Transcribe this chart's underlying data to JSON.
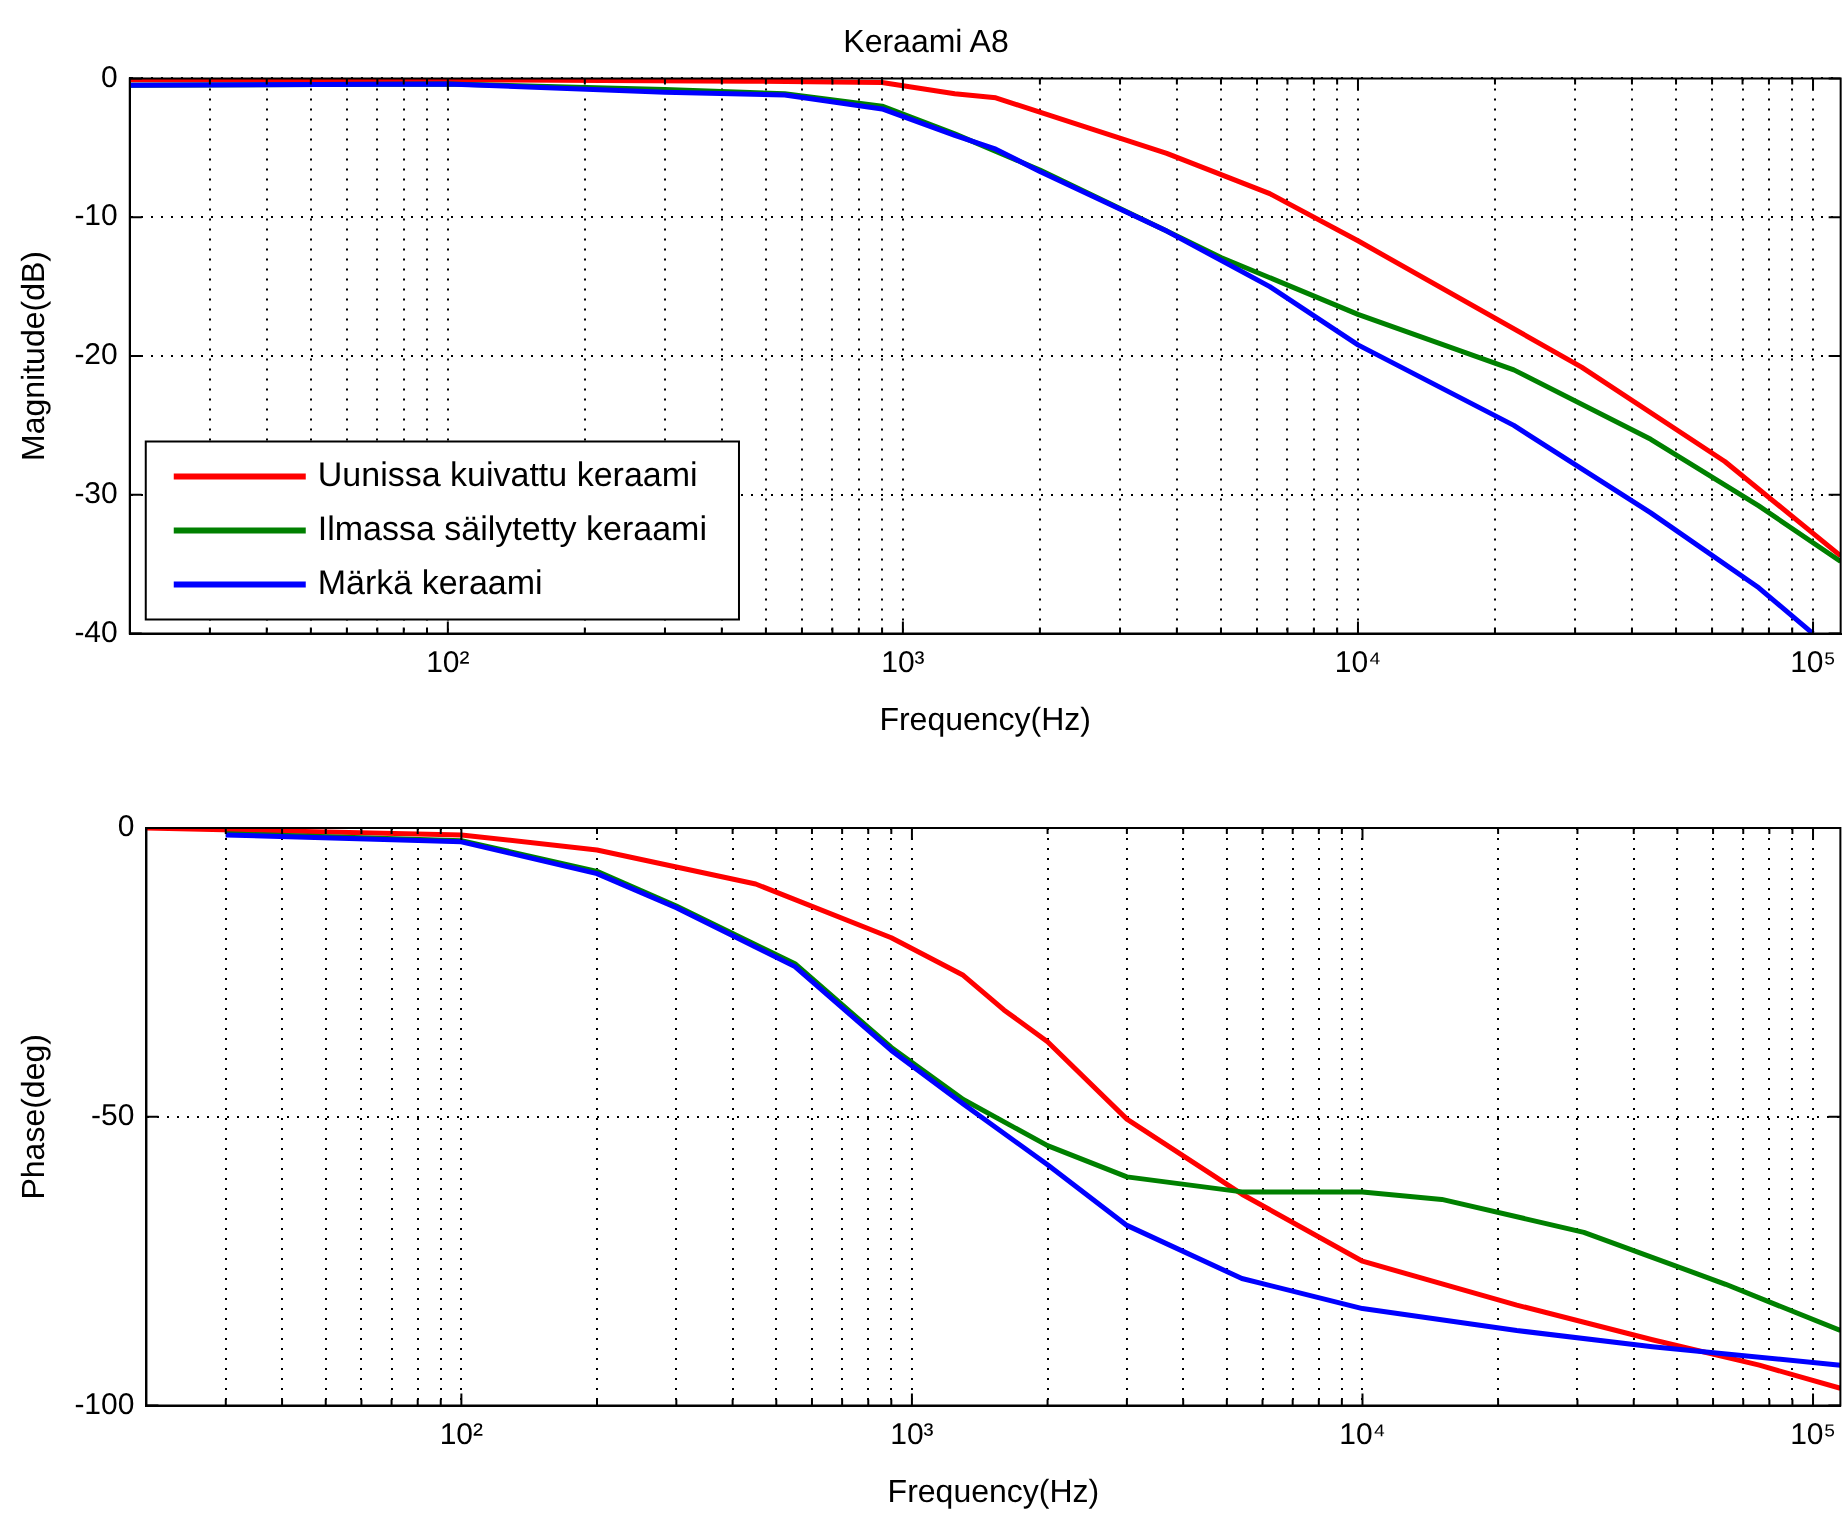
{
  "chart_data": [
    {
      "type": "line",
      "title": "Keraami A8",
      "xlabel": "Frequency(Hz)",
      "ylabel": "Magnitude(dB)",
      "log": "x",
      "grid": true,
      "legend": "bottom left",
      "xlim": [
        20,
        115000
      ],
      "ylim": [
        -40,
        0
      ],
      "xticks": [
        {
          "value": 30,
          "label": null
        },
        {
          "value": 40,
          "label": null
        },
        {
          "value": 50,
          "label": null
        },
        {
          "value": 60,
          "label": null
        },
        {
          "value": 70,
          "label": null
        },
        {
          "value": 80,
          "label": null
        },
        {
          "value": 90,
          "label": null
        },
        {
          "value": 100,
          "label": "10²"
        },
        {
          "value": 200,
          "label": null
        },
        {
          "value": 300,
          "label": null
        },
        {
          "value": 400,
          "label": null
        },
        {
          "value": 500,
          "label": null
        },
        {
          "value": 600,
          "label": null
        },
        {
          "value": 700,
          "label": null
        },
        {
          "value": 800,
          "label": null
        },
        {
          "value": 900,
          "label": null
        },
        {
          "value": 1000,
          "label": "10³"
        },
        {
          "value": 2000,
          "label": null
        },
        {
          "value": 3000,
          "label": null
        },
        {
          "value": 4000,
          "label": null
        },
        {
          "value": 5000,
          "label": null
        },
        {
          "value": 6000,
          "label": null
        },
        {
          "value": 7000,
          "label": null
        },
        {
          "value": 8000,
          "label": null
        },
        {
          "value": 9000,
          "label": null
        },
        {
          "value": 10000,
          "label": "10⁴"
        },
        {
          "value": 20000,
          "label": null
        },
        {
          "value": 30000,
          "label": null
        },
        {
          "value": 40000,
          "label": null
        },
        {
          "value": 50000,
          "label": null
        },
        {
          "value": 60000,
          "label": null
        },
        {
          "value": 70000,
          "label": null
        },
        {
          "value": 80000,
          "label": null
        },
        {
          "value": 90000,
          "label": null
        },
        {
          "value": 100000,
          "label": "10⁵"
        }
      ],
      "yticks": [
        -40,
        -30,
        -20,
        -10,
        0
      ],
      "series": [
        {
          "name": "Uunissa kuivattu keraami",
          "color": "#ff0000",
          "x": [
            20,
            100,
            450,
            900,
            1300,
            1600,
            3800,
            6400,
            10000,
            31000,
            64000,
            115000
          ],
          "values": [
            -0.1,
            -0.1,
            -0.2,
            -0.3,
            -1.1,
            -1.4,
            -5.4,
            -8.3,
            -11.7,
            -20.8,
            -27.6,
            -34.4
          ]
        },
        {
          "name": "Ilmassa säilytetty keraami",
          "color": "#008000",
          "x": [
            20,
            100,
            300,
            550,
            900,
            1300,
            2000,
            3800,
            5000,
            10000,
            22000,
            44000,
            76000,
            115000
          ],
          "values": [
            -0.5,
            -0.4,
            -0.8,
            -1.1,
            -2.0,
            -4.0,
            -6.6,
            -11,
            -12.9,
            -17,
            -21,
            -26,
            -30.8,
            -34.8
          ]
        },
        {
          "name": "Märkä keraami",
          "color": "#0000ff",
          "x": [
            20,
            100,
            300,
            550,
            900,
            1300,
            1600,
            2000,
            3800,
            6400,
            10000,
            22000,
            44000,
            76000,
            100000
          ],
          "values": [
            -0.5,
            -0.4,
            -1,
            -1.2,
            -2.2,
            -4.1,
            -5.1,
            -6.7,
            -11,
            -15,
            -19.2,
            -25,
            -31.3,
            -36.7,
            -40
          ]
        }
      ]
    },
    {
      "type": "line",
      "xlabel": "Frequency(Hz)",
      "ylabel": "Phase(deg)",
      "log": "x",
      "grid": true,
      "xlim": [
        20,
        115000
      ],
      "ylim": [
        -100,
        0
      ],
      "xticks": [
        {
          "value": 30,
          "label": null
        },
        {
          "value": 40,
          "label": null
        },
        {
          "value": 50,
          "label": null
        },
        {
          "value": 60,
          "label": null
        },
        {
          "value": 70,
          "label": null
        },
        {
          "value": 80,
          "label": null
        },
        {
          "value": 90,
          "label": null
        },
        {
          "value": 100,
          "label": "10²"
        },
        {
          "value": 200,
          "label": null
        },
        {
          "value": 300,
          "label": null
        },
        {
          "value": 400,
          "label": null
        },
        {
          "value": 500,
          "label": null
        },
        {
          "value": 600,
          "label": null
        },
        {
          "value": 700,
          "label": null
        },
        {
          "value": 800,
          "label": null
        },
        {
          "value": 900,
          "label": null
        },
        {
          "value": 1000,
          "label": "10³"
        },
        {
          "value": 2000,
          "label": null
        },
        {
          "value": 3000,
          "label": null
        },
        {
          "value": 4000,
          "label": null
        },
        {
          "value": 5000,
          "label": null
        },
        {
          "value": 6000,
          "label": null
        },
        {
          "value": 7000,
          "label": null
        },
        {
          "value": 8000,
          "label": null
        },
        {
          "value": 9000,
          "label": null
        },
        {
          "value": 10000,
          "label": "10⁴"
        },
        {
          "value": 20000,
          "label": null
        },
        {
          "value": 30000,
          "label": null
        },
        {
          "value": 40000,
          "label": null
        },
        {
          "value": 50000,
          "label": null
        },
        {
          "value": 60000,
          "label": null
        },
        {
          "value": 70000,
          "label": null
        },
        {
          "value": 80000,
          "label": null
        },
        {
          "value": 90000,
          "label": null
        },
        {
          "value": 100000,
          "label": "10⁵"
        }
      ],
      "yticks": [
        -100,
        -50,
        0
      ],
      "series": [
        {
          "color": "#ff0000",
          "x": [
            20,
            100,
            200,
            450,
            900,
            1300,
            1600,
            2000,
            3000,
            5400,
            10000,
            22000,
            44000,
            76000,
            115000
          ],
          "values": [
            0,
            -1.2,
            -3.8,
            -9.7,
            -19,
            -25.5,
            -31.5,
            -37,
            -50.4,
            -63.4,
            -75,
            -82.6,
            -88.6,
            -93,
            -97
          ]
        },
        {
          "color": "#008000",
          "x": [
            30,
            100,
            200,
            300,
            550,
            900,
            1300,
            2000,
            3000,
            5400,
            10000,
            15000,
            31000,
            64000,
            115000
          ],
          "values": [
            -1,
            -2.2,
            -7.5,
            -13.5,
            -23.5,
            -38,
            -47,
            -55,
            -60.4,
            -63,
            -63,
            -64.3,
            -70,
            -79,
            -87
          ]
        },
        {
          "color": "#0000ff",
          "x": [
            30,
            100,
            200,
            300,
            550,
            900,
            1300,
            2000,
            3000,
            5400,
            10000,
            22000,
            44000,
            115000
          ],
          "values": [
            -1.2,
            -2.4,
            -7.9,
            -13.8,
            -24,
            -38.5,
            -47.8,
            -58.3,
            -68.8,
            -78,
            -83.2,
            -87,
            -89.8,
            -93
          ]
        }
      ]
    }
  ]
}
